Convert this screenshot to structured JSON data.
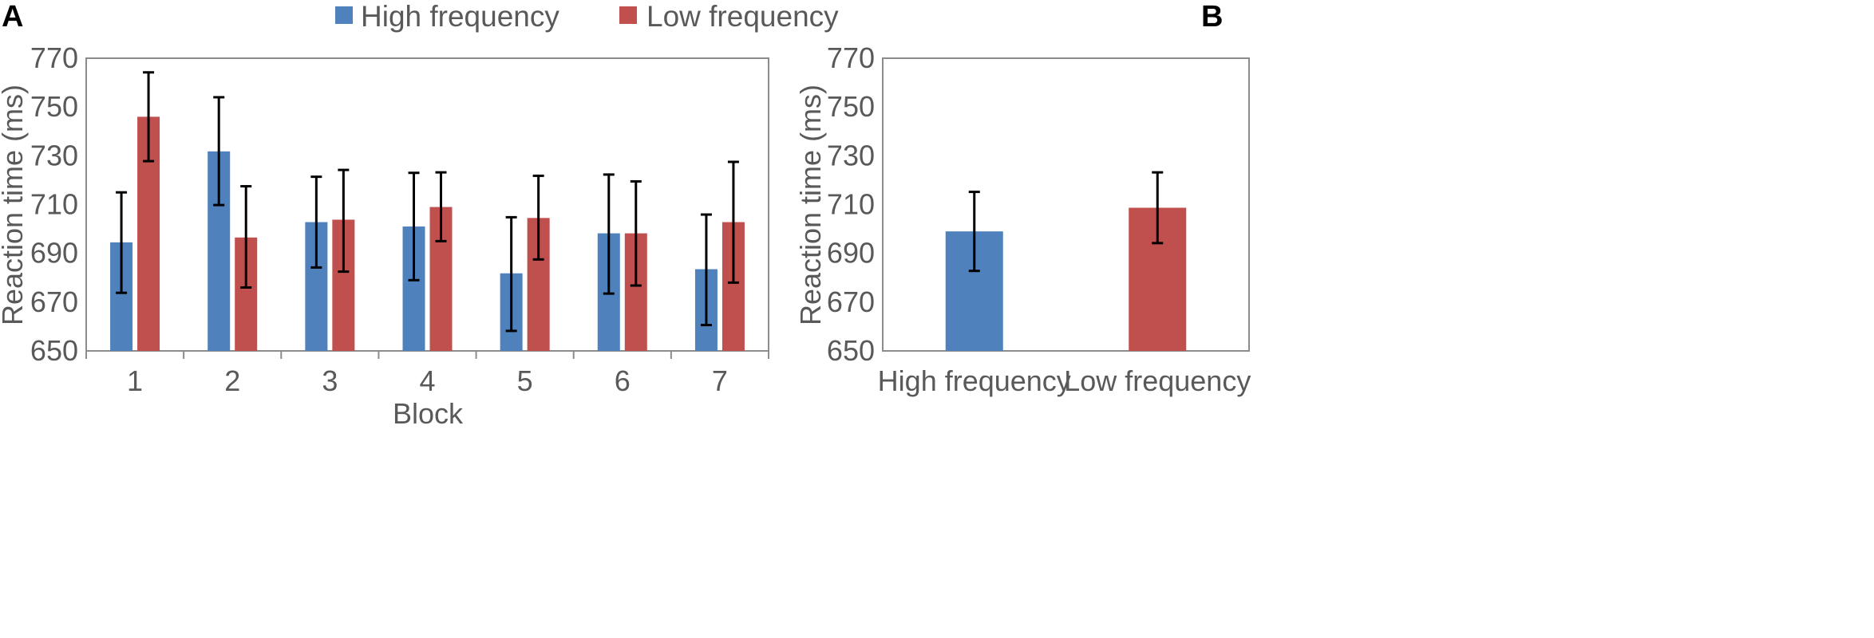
{
  "panels": {
    "a": "A",
    "b": "B"
  },
  "legend": [
    {
      "label": "High frequency",
      "color": "#4F81BD"
    },
    {
      "label": "Low frequency",
      "color": "#C0504D"
    }
  ],
  "chart_data": [
    {
      "panel": "A",
      "type": "bar",
      "title": "",
      "xlabel": "Block",
      "ylabel": "Reaction time (ms)",
      "ylim": [
        650,
        770
      ],
      "yticks": [
        650,
        670,
        690,
        710,
        730,
        750,
        770
      ],
      "categories": [
        "1",
        "2",
        "3",
        "4",
        "5",
        "6",
        "7"
      ],
      "series": [
        {
          "name": "High frequency",
          "color": "#4F81BD",
          "values": [
            694.5,
            731.8,
            702.8,
            701.0,
            681.8,
            698.2,
            683.5
          ],
          "error_low": [
            673.8,
            709.8,
            684.2,
            679.0,
            658.2,
            673.5,
            660.6
          ],
          "error_high": [
            715.0,
            754.0,
            721.4,
            723.0,
            704.8,
            722.3,
            705.9
          ]
        },
        {
          "name": "Low frequency",
          "color": "#C0504D",
          "values": [
            746.0,
            696.5,
            703.8,
            709.0,
            704.5,
            698.2,
            702.8
          ],
          "error_low": [
            727.8,
            676.0,
            682.5,
            695.0,
            687.5,
            676.8,
            678.0
          ],
          "error_high": [
            764.2,
            717.5,
            724.2,
            723.2,
            721.8,
            719.5,
            727.5
          ]
        }
      ],
      "legend_position": "top"
    },
    {
      "panel": "B",
      "type": "bar",
      "title": "",
      "xlabel": "",
      "ylabel": "Reaction time (ms)",
      "ylim": [
        650,
        770
      ],
      "yticks": [
        650,
        670,
        690,
        710,
        730,
        750,
        770
      ],
      "categories": [
        "High frequency",
        "Low frequency"
      ],
      "series": [
        {
          "name": "Reaction time",
          "colors": [
            "#4F81BD",
            "#C0504D"
          ],
          "values": [
            699.0,
            708.7
          ],
          "error_low": [
            682.8,
            694.2
          ],
          "error_high": [
            715.2,
            723.2
          ]
        }
      ]
    }
  ]
}
